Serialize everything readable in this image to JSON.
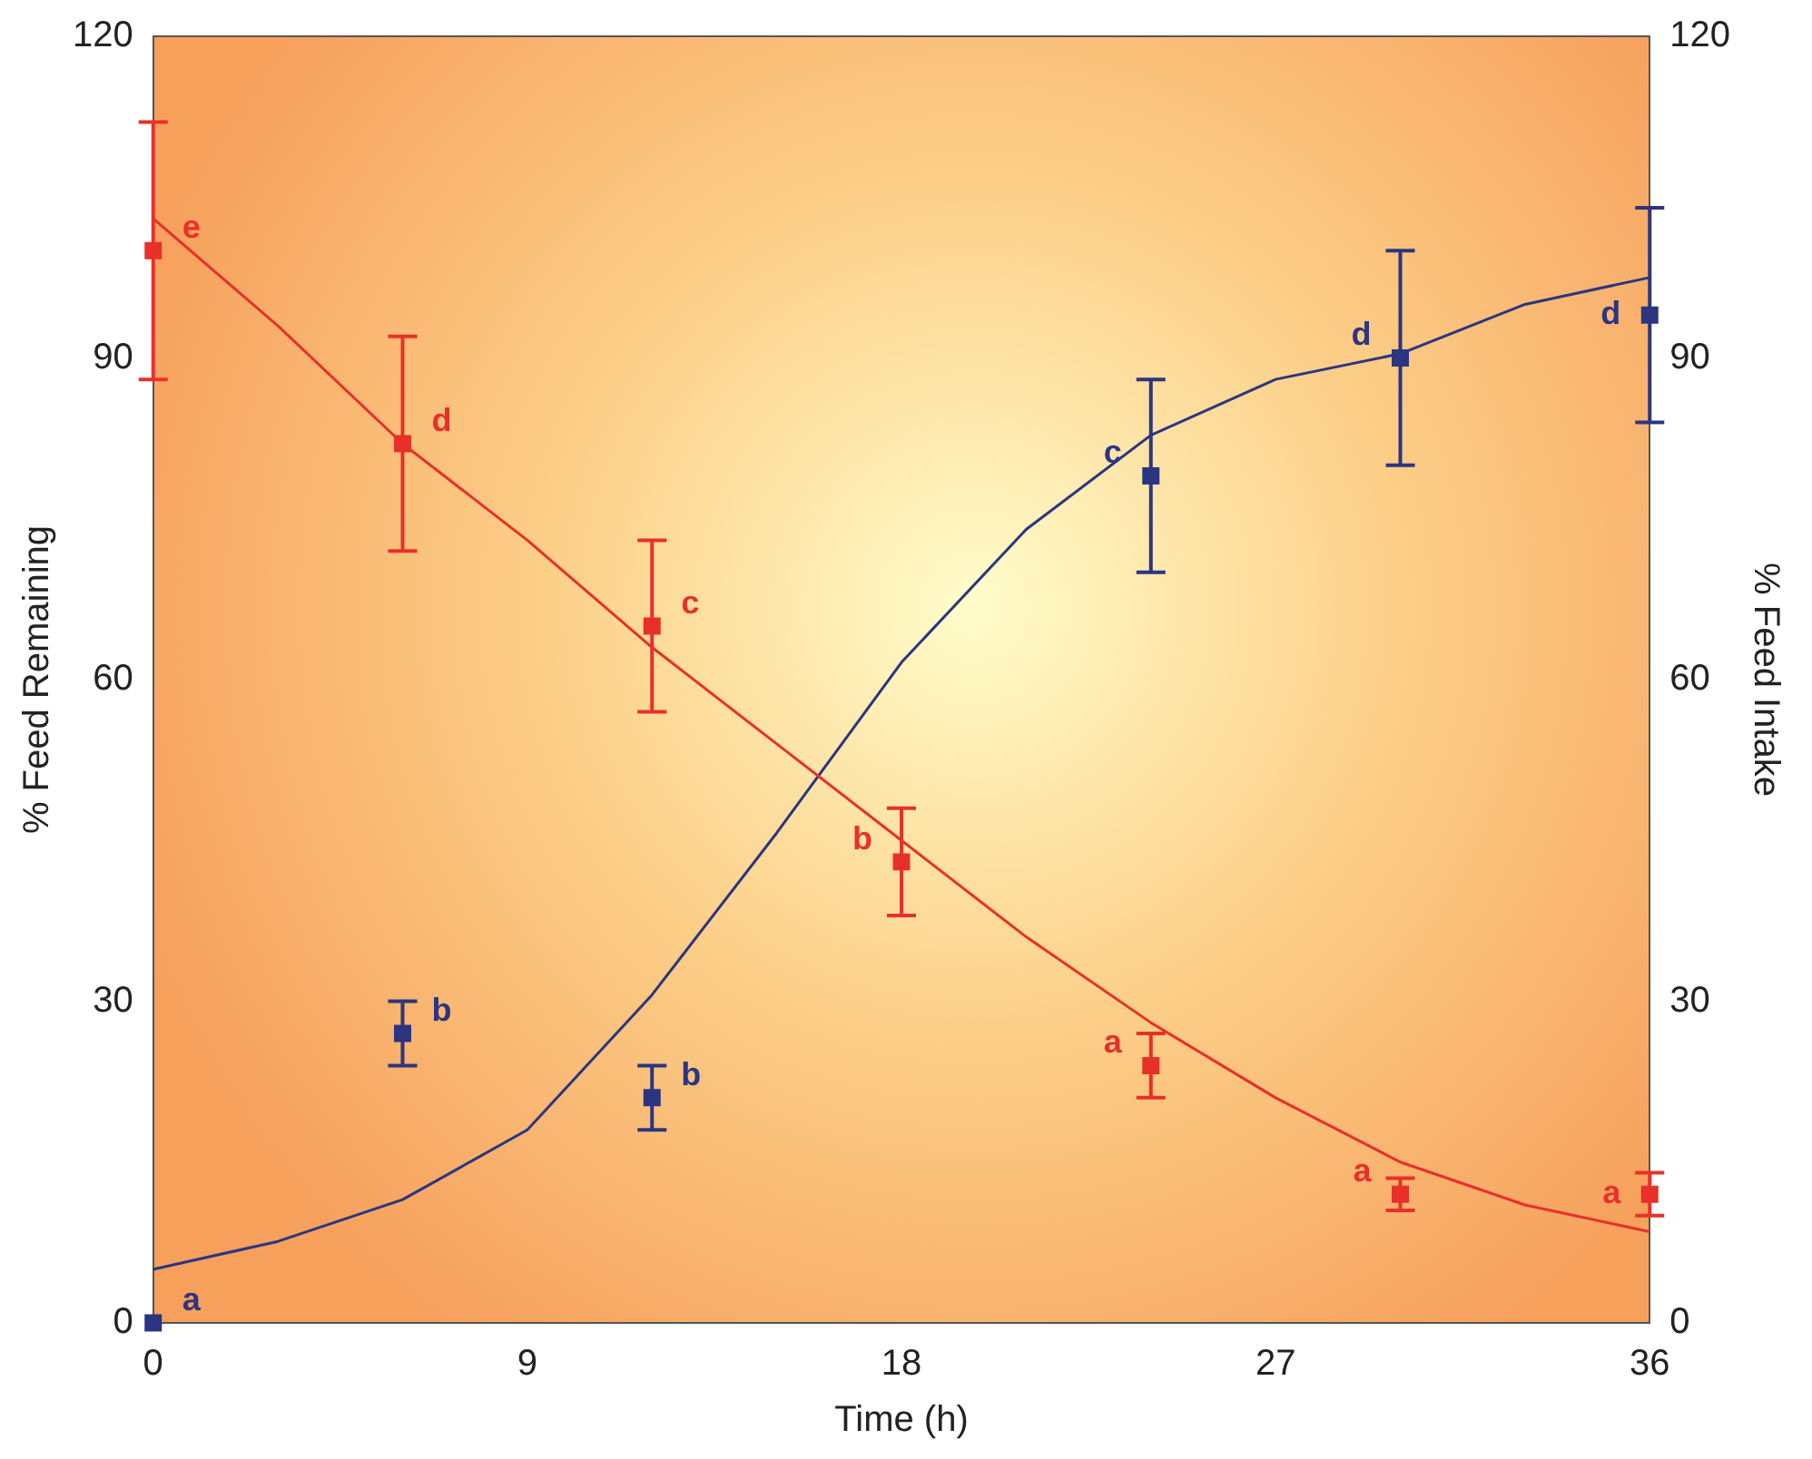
{
  "chart_data": {
    "type": "scatter",
    "xlabel": "Time (h)",
    "ylabel": "% Feed Remaining",
    "y2label": "% Feed Intake",
    "xlim": [
      0,
      36
    ],
    "xticks": [
      0,
      9,
      18,
      27,
      36
    ],
    "ylim": [
      0,
      120
    ],
    "yticks": [
      0,
      30,
      60,
      90,
      120
    ],
    "y2lim": [
      0,
      120
    ],
    "y2ticks": [
      0,
      30,
      60,
      90,
      120
    ],
    "grid": false,
    "legend": false,
    "marker": "square",
    "series": [
      {
        "color": "#e8302a",
        "x": [
          0,
          6,
          12,
          18,
          24,
          30,
          36
        ],
        "values": [
          100,
          82,
          65,
          43,
          24,
          12,
          12
        ],
        "errors": [
          12,
          10,
          8,
          5,
          3,
          1.5,
          2
        ]
      },
      {
        "axis": "y2",
        "color": "#2c3580",
        "x": [
          0,
          6,
          12,
          24,
          30,
          36
        ],
        "values": [
          0,
          27,
          21,
          79,
          90,
          94
        ],
        "errors": [
          null,
          3,
          3,
          9,
          10,
          10
        ]
      },
      {
        "type": "line",
        "marker": "none",
        "color": "#e8302a",
        "x": [
          0,
          3,
          6,
          9,
          12,
          15,
          18,
          21,
          24,
          27,
          30,
          33,
          36
        ],
        "values": [
          103,
          93,
          82,
          73,
          63,
          54,
          45,
          36,
          28,
          21,
          15,
          11,
          8.5
        ]
      },
      {
        "type": "line",
        "marker": "none",
        "axis": "y2",
        "color": "#2c3580",
        "x": [
          0,
          3,
          6,
          9,
          12,
          15,
          18,
          21,
          24,
          27,
          30,
          33,
          36
        ],
        "values": [
          5,
          7.6,
          11.5,
          18,
          30.6,
          45.7,
          61.6,
          74,
          82.8,
          88,
          90.4,
          95,
          97.5
        ]
      }
    ],
    "annotations": [
      {
        "text": "e",
        "x": 0,
        "y": 100
      },
      {
        "text": "d",
        "x": 6,
        "y": 82
      },
      {
        "text": "c",
        "x": 12,
        "y": 65
      },
      {
        "text": "b",
        "x": 18,
        "y": 43
      },
      {
        "text": "a",
        "x": 24,
        "y": 24
      },
      {
        "text": "a",
        "x": 30,
        "y": 12
      },
      {
        "text": "a",
        "x": 36,
        "y": 12
      },
      {
        "text": "a",
        "x": 0,
        "y": 0
      },
      {
        "text": "b",
        "x": 6,
        "y": 27
      },
      {
        "text": "b",
        "x": 12,
        "y": 21
      },
      {
        "text": "c",
        "x": 24,
        "y": 79
      },
      {
        "text": "d",
        "x": 30,
        "y": 90
      },
      {
        "text": "d",
        "x": 36,
        "y": 94
      }
    ]
  }
}
